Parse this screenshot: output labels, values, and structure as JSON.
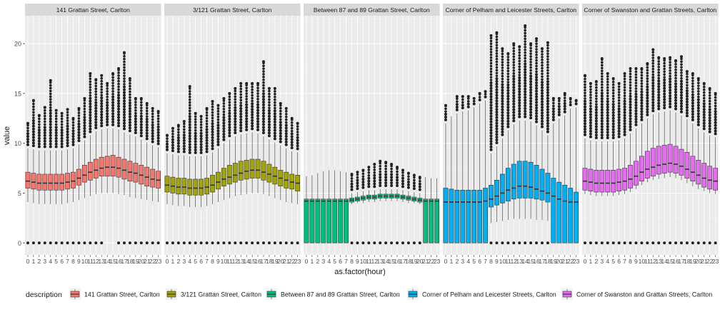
{
  "chart_data": {
    "type": "boxplot",
    "facet_by": "description",
    "xlabel": "as.factor(hour)",
    "ylabel": "value",
    "ylim": [
      -1.2,
      22.8
    ],
    "yticks": [
      0,
      5,
      10,
      15,
      20
    ],
    "categories": [
      "0",
      "1",
      "2",
      "3",
      "4",
      "5",
      "6",
      "7",
      "8",
      "9",
      "10",
      "11",
      "12",
      "13",
      "14",
      "15",
      "16",
      "17",
      "18",
      "19",
      "20",
      "21",
      "22",
      "23"
    ],
    "grid": true,
    "legend": {
      "title": "description",
      "position": "bottom"
    },
    "panels": [
      {
        "name": "141 Grattan Street, Carlton",
        "color": "#F8766D",
        "median": [
          6.2,
          6.1,
          6.0,
          6.0,
          6.0,
          6.0,
          6.0,
          6.1,
          6.2,
          6.5,
          6.8,
          7.1,
          7.3,
          7.5,
          7.6,
          7.6,
          7.5,
          7.3,
          7.1,
          7.0,
          6.8,
          6.6,
          6.4,
          6.3
        ],
        "q1": [
          5.5,
          5.4,
          5.3,
          5.3,
          5.3,
          5.3,
          5.3,
          5.4,
          5.5,
          5.8,
          6.1,
          6.3,
          6.5,
          6.7,
          6.7,
          6.7,
          6.6,
          6.4,
          6.2,
          6.1,
          5.9,
          5.7,
          5.6,
          5.5
        ],
        "q3": [
          7.1,
          7.0,
          6.9,
          6.9,
          6.9,
          6.9,
          6.9,
          7.0,
          7.1,
          7.4,
          7.8,
          8.1,
          8.4,
          8.6,
          8.7,
          8.8,
          8.6,
          8.4,
          8.2,
          8.0,
          7.8,
          7.6,
          7.4,
          7.2
        ],
        "whisker_low": [
          4.1,
          4.0,
          3.9,
          3.9,
          3.9,
          3.9,
          3.9,
          4.0,
          4.1,
          4.3,
          4.5,
          4.7,
          4.9,
          5.0,
          5.0,
          5.0,
          4.9,
          4.8,
          4.6,
          4.5,
          4.4,
          4.3,
          4.2,
          4.1
        ],
        "whisker_high": [
          9.5,
          9.4,
          9.3,
          9.3,
          9.3,
          9.3,
          9.3,
          9.4,
          9.5,
          9.9,
          10.3,
          10.8,
          11.2,
          11.4,
          11.5,
          11.5,
          11.4,
          11.1,
          10.9,
          10.7,
          10.4,
          10.1,
          9.8,
          9.6
        ],
        "outlier_max": [
          12.0,
          14.3,
          12.8,
          13.6,
          16.3,
          13.3,
          13.0,
          13.4,
          12.5,
          13.5,
          14.5,
          17.0,
          16.4,
          16.8,
          16.0,
          17.0,
          17.5,
          19.1,
          16.5,
          14.5,
          14.5,
          14.0,
          13.5,
          13.2
        ],
        "has_zero": [
          1,
          1,
          1,
          1,
          1,
          1,
          1,
          1,
          1,
          1,
          1,
          1,
          1,
          1,
          0,
          0,
          1,
          1,
          1,
          1,
          1,
          1,
          1,
          1
        ]
      },
      {
        "name": "3/121 Grattan Street, Carlton",
        "color": "#A3A500",
        "median": [
          5.8,
          5.7,
          5.6,
          5.6,
          5.5,
          5.5,
          5.5,
          5.6,
          5.8,
          6.1,
          6.4,
          6.6,
          6.8,
          7.0,
          7.2,
          7.3,
          7.3,
          7.1,
          6.9,
          6.7,
          6.5,
          6.3,
          6.1,
          6.0
        ],
        "q1": [
          5.1,
          5.0,
          4.9,
          4.9,
          4.8,
          4.8,
          4.8,
          4.9,
          5.1,
          5.4,
          5.7,
          5.9,
          6.1,
          6.3,
          6.4,
          6.5,
          6.5,
          6.3,
          6.1,
          5.9,
          5.7,
          5.5,
          5.4,
          5.2
        ],
        "q3": [
          6.7,
          6.6,
          6.5,
          6.5,
          6.4,
          6.4,
          6.4,
          6.5,
          6.8,
          7.1,
          7.5,
          7.8,
          8.0,
          8.2,
          8.3,
          8.4,
          8.4,
          8.2,
          7.9,
          7.6,
          7.3,
          7.1,
          6.9,
          6.8
        ],
        "whisker_low": [
          3.9,
          3.8,
          3.7,
          3.7,
          3.6,
          3.6,
          3.6,
          3.7,
          3.9,
          4.1,
          4.3,
          4.5,
          4.7,
          4.8,
          4.9,
          5.0,
          5.0,
          4.9,
          4.7,
          4.5,
          4.3,
          4.1,
          4.0,
          3.9
        ],
        "whisker_high": [
          9.0,
          8.9,
          8.8,
          8.8,
          8.7,
          8.7,
          8.7,
          8.8,
          9.1,
          9.5,
          10.0,
          10.4,
          10.7,
          10.9,
          11.0,
          11.1,
          11.0,
          10.7,
          10.4,
          10.1,
          9.8,
          9.5,
          9.2,
          9.1
        ],
        "outlier_max": [
          10.8,
          11.5,
          11.8,
          12.2,
          15.7,
          13.0,
          12.7,
          13.5,
          14.2,
          13.8,
          14.5,
          15.0,
          15.5,
          16.0,
          16.0,
          16.0,
          16.0,
          18.2,
          15.5,
          15.5,
          14.0,
          13.5,
          12.5,
          12.0
        ],
        "has_zero": [
          1,
          1,
          1,
          1,
          1,
          1,
          1,
          1,
          1,
          1,
          1,
          1,
          1,
          1,
          1,
          1,
          1,
          1,
          1,
          1,
          1,
          1,
          1,
          1
        ]
      },
      {
        "name": "Between 87 and 89 Grattan Street, Carlton",
        "color": "#00BF7D",
        "median": [
          4.2,
          4.2,
          4.2,
          4.2,
          4.2,
          4.2,
          4.2,
          4.2,
          4.3,
          4.4,
          4.5,
          4.6,
          4.6,
          4.7,
          4.7,
          4.7,
          4.7,
          4.6,
          4.5,
          4.4,
          4.3,
          4.2,
          4.2,
          4.2
        ],
        "q1": [
          0,
          0,
          0,
          0,
          0,
          0,
          0,
          0,
          4.1,
          4.2,
          4.3,
          4.4,
          4.4,
          4.5,
          4.5,
          4.5,
          4.5,
          4.4,
          4.3,
          4.2,
          4.1,
          0,
          0,
          0
        ],
        "q3": [
          4.4,
          4.4,
          4.4,
          4.4,
          4.4,
          4.4,
          4.4,
          4.4,
          4.5,
          4.6,
          4.7,
          4.8,
          4.8,
          4.9,
          4.9,
          4.9,
          4.9,
          4.8,
          4.7,
          4.6,
          4.5,
          4.4,
          4.4,
          4.4
        ],
        "whisker_low": [
          0,
          0,
          0,
          0,
          0,
          0,
          0,
          0,
          3.9,
          4.0,
          4.0,
          4.1,
          4.1,
          4.2,
          4.2,
          4.2,
          4.2,
          4.1,
          4.0,
          4.0,
          3.9,
          0,
          0,
          0
        ],
        "whisker_high": [
          6.7,
          6.8,
          7.0,
          7.2,
          7.3,
          7.3,
          7.2,
          7.1,
          5.0,
          5.1,
          5.2,
          5.3,
          5.3,
          5.4,
          5.4,
          5.4,
          5.4,
          5.3,
          5.2,
          5.1,
          5.0,
          6.6,
          6.5,
          6.5
        ],
        "outlier_max": [
          null,
          null,
          null,
          null,
          null,
          null,
          null,
          null,
          6.9,
          7.1,
          7.3,
          7.6,
          7.9,
          8.2,
          8.1,
          7.9,
          7.6,
          7.3,
          7.0,
          6.8,
          6.6,
          null,
          null,
          null
        ],
        "has_zero": [
          0,
          0,
          0,
          0,
          0,
          0,
          0,
          0,
          1,
          1,
          1,
          1,
          1,
          1,
          1,
          1,
          1,
          1,
          1,
          1,
          1,
          0,
          0,
          0
        ]
      },
      {
        "name": "Corner of Pelham and Leicester Streets, Carlton",
        "color": "#00B0F6",
        "median": [
          4.1,
          4.1,
          4.1,
          4.1,
          4.1,
          4.1,
          4.1,
          4.2,
          4.4,
          4.7,
          5.0,
          5.3,
          5.5,
          5.7,
          5.7,
          5.6,
          5.4,
          5.2,
          5.0,
          4.7,
          4.4,
          4.2,
          4.1,
          4.1
        ],
        "q1": [
          0,
          0,
          0,
          0,
          0,
          0,
          0,
          0,
          3.6,
          3.8,
          4.0,
          4.2,
          4.4,
          4.5,
          4.5,
          4.5,
          4.4,
          4.3,
          4.1,
          0,
          0,
          0,
          0,
          0
        ],
        "q3": [
          5.5,
          5.4,
          5.3,
          5.3,
          5.3,
          5.3,
          5.3,
          5.5,
          5.8,
          6.3,
          6.9,
          7.5,
          7.9,
          8.2,
          8.2,
          8.1,
          7.8,
          7.4,
          7.0,
          6.5,
          6.1,
          5.8,
          5.5,
          5.1
        ],
        "whisker_low": [
          0,
          0,
          0,
          0,
          0,
          0,
          0,
          0,
          2.0,
          2.1,
          2.2,
          2.3,
          2.4,
          2.4,
          2.4,
          2.4,
          2.3,
          2.3,
          2.2,
          0,
          0,
          0,
          0,
          0
        ],
        "whisker_high": [
          12.0,
          12.7,
          13.0,
          13.2,
          13.3,
          13.6,
          14.0,
          14.3,
          9.0,
          9.7,
          10.5,
          11.3,
          11.9,
          12.3,
          12.3,
          12.2,
          11.8,
          11.3,
          10.8,
          12.0,
          12.5,
          12.8,
          13.5,
          13.6
        ],
        "outlier_max": [
          13.8,
          null,
          14.7,
          14.7,
          14.7,
          14.5,
          15.0,
          15.2,
          20.8,
          21.1,
          19.5,
          19.0,
          20.0,
          19.7,
          21.8,
          20.0,
          20.5,
          19.5,
          20.1,
          14.5,
          14.5,
          15.0,
          14.5,
          14.3
        ],
        "has_zero": [
          0,
          0,
          0,
          0,
          0,
          0,
          0,
          0,
          1,
          1,
          1,
          1,
          1,
          1,
          1,
          1,
          1,
          1,
          1,
          0,
          0,
          0,
          0,
          0
        ]
      },
      {
        "name": "Corner of Swanston and Grattan Streets, Carlton",
        "color": "#E76BF3",
        "median": [
          6.2,
          6.1,
          6.0,
          6.0,
          6.0,
          6.0,
          6.1,
          6.2,
          6.4,
          6.7,
          7.1,
          7.4,
          7.6,
          7.8,
          7.9,
          8.0,
          7.9,
          7.7,
          7.4,
          7.1,
          6.8,
          6.5,
          6.3,
          6.2
        ],
        "q1": [
          5.3,
          5.2,
          5.1,
          5.1,
          5.1,
          5.1,
          5.2,
          5.3,
          5.5,
          5.8,
          6.2,
          6.5,
          6.7,
          6.9,
          7.0,
          7.1,
          7.0,
          6.8,
          6.5,
          6.2,
          5.9,
          5.6,
          5.4,
          5.3
        ],
        "q3": [
          7.5,
          7.4,
          7.3,
          7.3,
          7.3,
          7.3,
          7.4,
          7.5,
          7.8,
          8.2,
          8.7,
          9.2,
          9.5,
          9.7,
          9.8,
          9.9,
          9.7,
          9.4,
          9.1,
          8.7,
          8.3,
          8.0,
          7.7,
          7.5
        ],
        "whisker_low": [
          4.9,
          4.8,
          4.7,
          4.7,
          4.7,
          4.7,
          4.8,
          4.9,
          5.1,
          5.4,
          5.8,
          6.1,
          6.3,
          6.4,
          6.5,
          6.6,
          6.5,
          6.3,
          6.0,
          5.7,
          5.4,
          5.2,
          5.0,
          4.9
        ],
        "whisker_high": [
          10.5,
          10.3,
          10.2,
          10.2,
          10.2,
          10.2,
          10.3,
          10.5,
          11.0,
          11.5,
          12.0,
          12.5,
          12.9,
          13.1,
          13.2,
          13.3,
          13.1,
          12.8,
          12.4,
          12.0,
          11.5,
          11.1,
          10.8,
          10.6
        ],
        "outlier_max": [
          16.8,
          16.0,
          16.2,
          18.5,
          17.0,
          16.5,
          16.0,
          17.0,
          17.5,
          17.5,
          17.5,
          18.0,
          19.4,
          18.6,
          18.5,
          18.6,
          18.3,
          18.7,
          17.2,
          17.0,
          16.5,
          16.0,
          15.5,
          15.0
        ],
        "has_zero": [
          1,
          1,
          1,
          1,
          1,
          1,
          1,
          1,
          1,
          1,
          1,
          1,
          1,
          1,
          1,
          1,
          1,
          1,
          1,
          1,
          1,
          1,
          1,
          1
        ]
      }
    ]
  }
}
